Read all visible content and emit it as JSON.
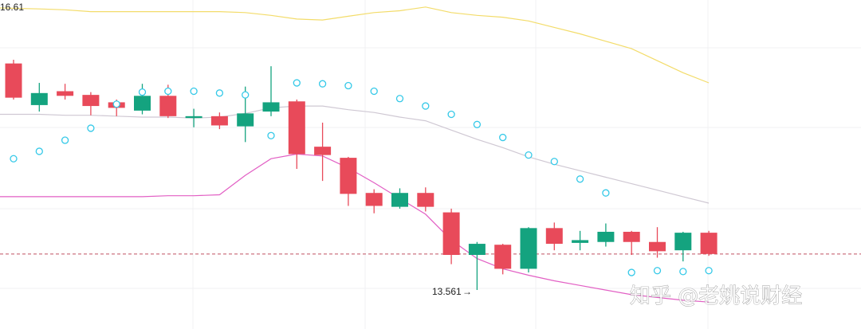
{
  "chart_data": {
    "type": "candlestick",
    "y_min": 13.561,
    "y_max": 16.61,
    "annotations": {
      "high_label": "16.61",
      "low_label": "13.561",
      "low_arrow": "→"
    },
    "watermark": "知乎 @老姚说财经",
    "reference_line": 13.95,
    "colors": {
      "up": "#14a37f",
      "down": "#e84a5a",
      "upper_band": "#f3dc6a",
      "middle_band": "#cfc8d3",
      "lower_band": "#e25fc4",
      "sar": "#35c9e8",
      "reference_line": "#c05060"
    },
    "candles": [
      {
        "o": 16.01,
        "h": 16.05,
        "l": 15.62,
        "c": 15.64
      },
      {
        "o": 15.56,
        "h": 15.8,
        "l": 15.49,
        "c": 15.69
      },
      {
        "o": 15.71,
        "h": 15.79,
        "l": 15.62,
        "c": 15.66
      },
      {
        "o": 15.67,
        "h": 15.7,
        "l": 15.45,
        "c": 15.55
      },
      {
        "o": 15.59,
        "h": 15.62,
        "l": 15.44,
        "c": 15.53
      },
      {
        "o": 15.5,
        "h": 15.79,
        "l": 15.46,
        "c": 15.66
      },
      {
        "o": 15.66,
        "h": 15.78,
        "l": 15.42,
        "c": 15.44
      },
      {
        "o": 15.42,
        "h": 15.52,
        "l": 15.32,
        "c": 15.44
      },
      {
        "o": 15.44,
        "h": 15.48,
        "l": 15.3,
        "c": 15.34
      },
      {
        "o": 15.33,
        "h": 15.76,
        "l": 15.16,
        "c": 15.47
      },
      {
        "o": 15.49,
        "h": 15.98,
        "l": 15.44,
        "c": 15.59
      },
      {
        "o": 15.6,
        "h": 15.62,
        "l": 14.87,
        "c": 15.03
      },
      {
        "o": 15.11,
        "h": 15.37,
        "l": 14.74,
        "c": 15.02
      },
      {
        "o": 14.99,
        "h": 15.0,
        "l": 14.47,
        "c": 14.6
      },
      {
        "o": 14.61,
        "h": 14.65,
        "l": 14.39,
        "c": 14.47
      },
      {
        "o": 14.46,
        "h": 14.66,
        "l": 14.44,
        "c": 14.61
      },
      {
        "o": 14.61,
        "h": 14.67,
        "l": 14.41,
        "c": 14.46
      },
      {
        "o": 14.4,
        "h": 14.44,
        "l": 13.84,
        "c": 13.94
      },
      {
        "o": 13.94,
        "h": 14.08,
        "l": 13.561,
        "c": 14.06
      },
      {
        "o": 14.05,
        "h": 14.06,
        "l": 13.73,
        "c": 13.79
      },
      {
        "o": 13.79,
        "h": 14.24,
        "l": 13.75,
        "c": 14.23
      },
      {
        "o": 14.23,
        "h": 14.29,
        "l": 13.99,
        "c": 14.06
      },
      {
        "o": 14.07,
        "h": 14.2,
        "l": 13.99,
        "c": 14.1
      },
      {
        "o": 14.08,
        "h": 14.28,
        "l": 14.03,
        "c": 14.19
      },
      {
        "o": 14.19,
        "h": 14.2,
        "l": 13.94,
        "c": 14.08
      },
      {
        "o": 14.08,
        "h": 14.24,
        "l": 13.91,
        "c": 13.98
      },
      {
        "o": 13.99,
        "h": 14.19,
        "l": 13.87,
        "c": 14.18
      },
      {
        "o": 14.18,
        "h": 14.2,
        "l": 13.93,
        "c": 13.95
      }
    ],
    "upper_band": [
      16.61,
      16.6,
      16.59,
      16.57,
      16.57,
      16.57,
      16.57,
      16.57,
      16.57,
      16.56,
      16.53,
      16.49,
      16.48,
      16.52,
      16.56,
      16.58,
      16.62,
      16.56,
      16.53,
      16.51,
      16.47,
      16.4,
      16.33,
      16.25,
      16.17,
      16.04,
      15.91,
      15.8
    ],
    "middle_band": [
      15.46,
      15.46,
      15.45,
      15.45,
      15.44,
      15.43,
      15.43,
      15.42,
      15.43,
      15.47,
      15.53,
      15.55,
      15.55,
      15.51,
      15.48,
      15.43,
      15.39,
      15.29,
      15.19,
      15.1,
      15.0,
      14.92,
      14.85,
      14.78,
      14.71,
      14.64,
      14.57,
      14.5
    ],
    "lower_band": [
      14.57,
      14.57,
      14.57,
      14.57,
      14.57,
      14.57,
      14.58,
      14.58,
      14.59,
      14.8,
      14.98,
      15.03,
      15.01,
      14.88,
      14.72,
      14.55,
      14.38,
      14.1,
      13.9,
      13.79,
      13.72,
      13.66,
      13.61,
      13.56,
      13.51,
      13.48,
      13.45,
      13.43
    ],
    "sar": [
      14.98,
      15.06,
      15.18,
      15.31,
      15.57,
      15.7,
      15.71,
      15.71,
      15.69,
      15.67,
      15.23,
      15.8,
      15.79,
      15.77,
      15.71,
      15.63,
      15.55,
      15.46,
      15.35,
      15.21,
      15.02,
      14.95,
      14.76,
      14.61,
      13.75,
      13.77,
      13.76,
      13.77
    ]
  }
}
